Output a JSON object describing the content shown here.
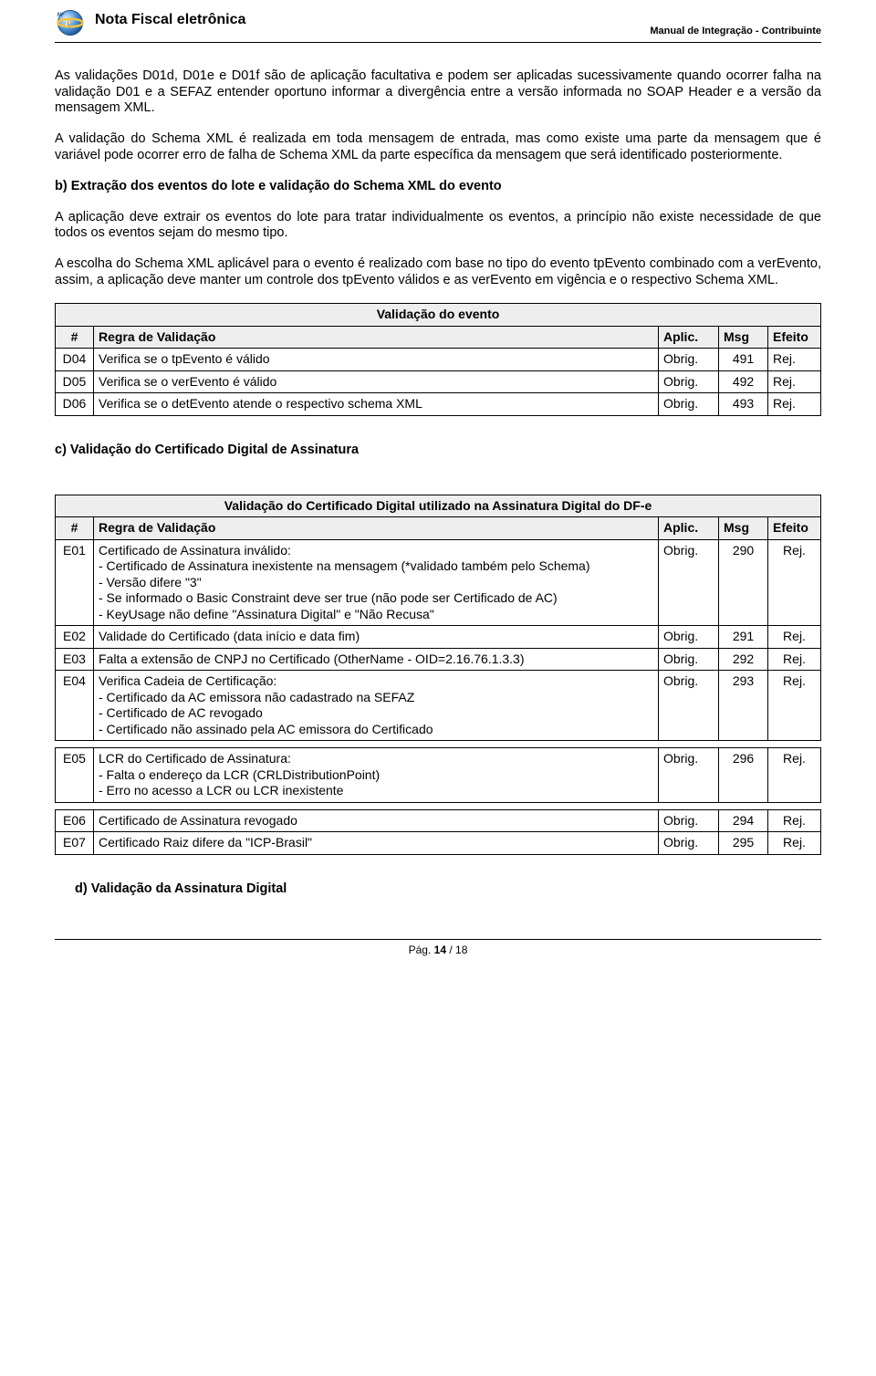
{
  "header": {
    "title": "Nota Fiscal eletrônica",
    "subtitle": "Manual de Integração - Contribuinte"
  },
  "para1": "As validações D01d, D01e e D01f são de aplicação facultativa e podem ser aplicadas sucessivamente quando ocorrer falha na validação D01 e a SEFAZ entender oportuno informar a divergência entre a versão informada no SOAP Header e a versão da mensagem XML.",
  "para2": "A validação do Schema XML é realizada em toda mensagem de entrada, mas como existe uma parte da mensagem que é variável pode ocorrer erro de falha de Schema XML da parte específica da mensagem que será identificado posteriormente.",
  "section_b_title": "b) Extração dos eventos do lote e validação do Schema XML do evento",
  "para3": "A aplicação deve extrair os eventos do lote para tratar individualmente os eventos, a princípio não existe necessidade de que todos os eventos sejam do mesmo tipo.",
  "para4": "A escolha do Schema XML aplicável para o evento é realizado com base no tipo do evento tpEvento combinado com a verEvento, assim, a aplicação deve manter um controle dos tpEvento válidos e as verEvento em vigência e o respectivo Schema XML.",
  "table1": {
    "caption": "Validação do evento",
    "headers": {
      "hash": "#",
      "regra": "Regra de Validação",
      "aplic": "Aplic.",
      "msg": "Msg",
      "efeito": "Efeito"
    },
    "rows": [
      {
        "id": "D04",
        "regra": "Verifica se o tpEvento é válido",
        "aplic": "Obrig.",
        "msg": "491",
        "efeito": "Rej."
      },
      {
        "id": "D05",
        "regra": "Verifica se o verEvento é válido",
        "aplic": "Obrig.",
        "msg": "492",
        "efeito": "Rej."
      },
      {
        "id": "D06",
        "regra": "Verifica se o detEvento atende o respectivo schema XML",
        "aplic": "Obrig.",
        "msg": "493",
        "efeito": "Rej."
      }
    ]
  },
  "section_c_title": "c) Validação do Certificado Digital de Assinatura",
  "table2": {
    "caption": "Validação do Certificado Digital utilizado na Assinatura Digital do DF-e",
    "headers": {
      "hash": "#",
      "regra": "Regra de Validação",
      "aplic": "Aplic.",
      "msg": "Msg",
      "efeito": "Efeito"
    },
    "rows": [
      {
        "id": "E01",
        "regra": "Certificado de Assinatura inválido:\n- Certificado de Assinatura inexistente na mensagem (*validado também pelo Schema)\n- Versão difere \"3\"\n- Se informado o Basic Constraint deve ser true (não pode ser Certificado de AC)\n- KeyUsage não define \"Assinatura Digital\" e \"Não Recusa\"",
        "aplic": "Obrig.",
        "msg": "290",
        "efeito": "Rej."
      },
      {
        "id": "E02",
        "regra": "Validade do Certificado (data início e data fim)",
        "aplic": "Obrig.",
        "msg": "291",
        "efeito": "Rej."
      },
      {
        "id": "E03",
        "regra": "Falta a extensão de CNPJ no Certificado (OtherName - OID=2.16.76.1.3.3)",
        "aplic": "Obrig.",
        "msg": "292",
        "efeito": "Rej."
      },
      {
        "id": "E04",
        "regra": "Verifica Cadeia de Certificação:\n- Certificado da AC emissora não cadastrado na SEFAZ\n- Certificado de AC revogado\n- Certificado não assinado pela AC emissora do Certificado",
        "aplic": "Obrig.",
        "msg": "293",
        "efeito": "Rej."
      },
      {
        "id": "E05",
        "regra": "LCR do Certificado de Assinatura:\n- Falta o endereço da LCR (CRLDistributionPoint)\n- Erro no acesso a LCR ou LCR inexistente",
        "aplic": "Obrig.",
        "msg": "296",
        "efeito": "Rej."
      },
      {
        "id": "E06",
        "regra": "Certificado de Assinatura revogado",
        "aplic": "Obrig.",
        "msg": "294",
        "efeito": "Rej."
      },
      {
        "id": "E07",
        "regra": "Certificado Raiz difere da \"ICP-Brasil\"",
        "aplic": "Obrig.",
        "msg": "295",
        "efeito": "Rej."
      }
    ]
  },
  "section_d_title": "d)  Validação da Assinatura Digital",
  "footer": {
    "label": "Pág. ",
    "current": "14",
    "sep": " / ",
    "total": "18"
  },
  "breaks_after": [
    "E04",
    "E05"
  ],
  "msg_center_table": "table2"
}
